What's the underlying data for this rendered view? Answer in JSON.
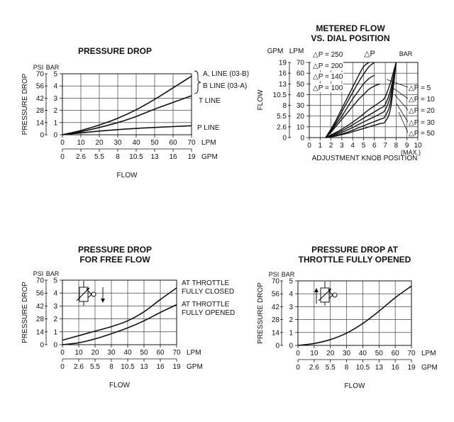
{
  "chart_data": [
    {
      "type": "line",
      "title": [
        "PRESSURE DROP"
      ],
      "xlabel": "FLOW",
      "ylabel": "PRESSURE DROP",
      "y_units": [
        "PSI",
        "BAR"
      ],
      "x_units": [
        "LPM",
        "GPM"
      ],
      "y_ticks_psi": [
        "0",
        "14",
        "28",
        "42",
        "56",
        "70"
      ],
      "y_ticks_bar": [
        "0",
        "1",
        "2",
        "3",
        "4",
        "5"
      ],
      "x_ticks_lpm": [
        "0",
        "10",
        "20",
        "30",
        "40",
        "50",
        "60",
        "70"
      ],
      "x_ticks_gpm": [
        "0",
        "2.6",
        "5.5",
        "8",
        "10.5",
        "13",
        "16",
        "19"
      ],
      "xlim": [
        0,
        70
      ],
      "ylim": [
        0,
        5
      ],
      "grid": true,
      "series": [
        {
          "name": "A, LINE (03-B)",
          "x": [
            0,
            10,
            20,
            30,
            40,
            50,
            60,
            70
          ],
          "y": [
            0,
            0.35,
            0.8,
            1.35,
            2.05,
            2.9,
            3.85,
            4.8
          ]
        },
        {
          "name": "B LINE (03-A)",
          "x": [],
          "y": []
        },
        {
          "name": "T LINE",
          "x": [
            0,
            10,
            20,
            30,
            40,
            50,
            60,
            70
          ],
          "y": [
            0,
            0.25,
            0.6,
            1.0,
            1.5,
            2.1,
            2.65,
            3.2
          ]
        },
        {
          "name": "P LINE",
          "x": [
            0,
            10,
            20,
            30,
            40,
            50,
            60,
            70
          ],
          "y": [
            0,
            0.15,
            0.3,
            0.42,
            0.52,
            0.6,
            0.67,
            0.74
          ]
        }
      ]
    },
    {
      "type": "line",
      "title": [
        "METERED FLOW",
        "VS. DIAL POSITION"
      ],
      "xlabel": "ADJUSTMENT KNOB POSITION",
      "ylabel": "FLOW",
      "y_units": [
        "GPM",
        "LPM"
      ],
      "y_ticks_gpm": [
        "0",
        "2.6",
        "5.5",
        "8",
        "10.5",
        "13",
        "16",
        "19"
      ],
      "y_ticks_lpm": [
        "0",
        "10",
        "20",
        "30",
        "40",
        "50",
        "60",
        "70"
      ],
      "x_ticks": [
        "0",
        "1",
        "2",
        "3",
        "4",
        "5",
        "6",
        "7",
        "8",
        "9",
        "10"
      ],
      "x_note": "(MAX.)",
      "xlim": [
        0,
        10
      ],
      "ylim": [
        0,
        70
      ],
      "grid": true,
      "dp_header": "△P",
      "bar_label": "BAR",
      "series": [
        {
          "name": "△P = 250",
          "x": [
            1.5,
            2,
            2.5,
            3,
            3.5,
            4,
            4.5,
            5,
            5.5
          ],
          "y": [
            0,
            8,
            17,
            27,
            37,
            47,
            57,
            66,
            70
          ]
        },
        {
          "name": "△P = 200",
          "x": [
            1.5,
            2,
            2.5,
            3,
            3.5,
            4,
            4.5,
            5,
            5.5,
            6
          ],
          "y": [
            0,
            7,
            15,
            24,
            33,
            42,
            51,
            59,
            66,
            70
          ]
        },
        {
          "name": "△P = 140",
          "x": [
            1.5,
            2,
            2.5,
            3,
            3.5,
            4,
            4.5,
            5,
            5.5,
            6
          ],
          "y": [
            0,
            6,
            13,
            20,
            28,
            36,
            43,
            50,
            55,
            58
          ]
        },
        {
          "name": "△P = 100",
          "x": [
            1.5,
            2,
            2.5,
            3,
            3.5,
            4,
            4.5,
            5,
            5.5,
            6,
            6.5
          ],
          "y": [
            0,
            5,
            11,
            17,
            23,
            29,
            35,
            40,
            45,
            48,
            50
          ]
        },
        {
          "name": "△P = 5",
          "x": [
            1.5,
            2.5,
            3.5,
            4.5,
            5.5,
            6.5,
            7,
            7.5,
            8
          ],
          "y": [
            0,
            5,
            11,
            18,
            26,
            33,
            38,
            52,
            70
          ]
        },
        {
          "name": "△P = 10",
          "x": [
            1.5,
            2.5,
            3.5,
            4.5,
            5.5,
            6.5,
            7,
            7.5,
            8
          ],
          "y": [
            0,
            4,
            9,
            15,
            21,
            27,
            31,
            45,
            70
          ]
        },
        {
          "name": "△P = 20",
          "x": [
            1.5,
            2.5,
            3.5,
            4.5,
            5.5,
            6.5,
            7,
            7.5,
            8
          ],
          "y": [
            0,
            3,
            7,
            12,
            17,
            22,
            26,
            40,
            70
          ]
        },
        {
          "name": "△P = 30",
          "x": [
            1.5,
            2.5,
            3.5,
            4.5,
            5.5,
            6.5,
            7,
            7.5,
            8
          ],
          "y": [
            0,
            2,
            5,
            9,
            13,
            17,
            20,
            34,
            70
          ]
        },
        {
          "name": "△P = 50",
          "x": [
            1.5,
            2.5,
            3.5,
            4.5,
            5.5,
            6.5,
            7,
            7.5,
            8
          ],
          "y": [
            0,
            1.5,
            4,
            7,
            10,
            13,
            15,
            28,
            70
          ]
        }
      ]
    },
    {
      "type": "line",
      "title": [
        "PRESSURE DROP",
        "FOR FREE FLOW"
      ],
      "xlabel": "FLOW",
      "ylabel": "PRESSURE DROP",
      "y_units": [
        "PSI",
        "BAR"
      ],
      "x_units": [
        "LPM",
        "GPM"
      ],
      "y_ticks_psi": [
        "0",
        "14",
        "28",
        "42",
        "56",
        "70"
      ],
      "y_ticks_bar": [
        "0",
        "1",
        "2",
        "3",
        "4",
        "5"
      ],
      "x_ticks_lpm": [
        "0",
        "10",
        "20",
        "30",
        "40",
        "50",
        "60",
        "70"
      ],
      "x_ticks_gpm": [
        "0",
        "2.6",
        "5.5",
        "8",
        "10.5",
        "13",
        "16",
        "19"
      ],
      "xlim": [
        0,
        70
      ],
      "ylim": [
        0,
        5
      ],
      "grid": true,
      "series": [
        {
          "name": "AT THROTTLE FULLY CLOSED",
          "x": [
            0,
            10,
            20,
            30,
            40,
            50,
            60,
            70
          ],
          "y": [
            0.35,
            0.7,
            1.05,
            1.4,
            1.85,
            2.55,
            3.5,
            4.4
          ]
        },
        {
          "name": "AT THROTTLE FULLY OPENED",
          "x": [
            0,
            10,
            20,
            30,
            40,
            50,
            60,
            70
          ],
          "y": [
            0,
            0.15,
            0.45,
            0.85,
            1.3,
            1.85,
            2.5,
            3.1
          ]
        }
      ]
    },
    {
      "type": "line",
      "title": [
        "PRESSURE DROP AT",
        "THROTTLE FULLY OPENED"
      ],
      "xlabel": "FLOW",
      "ylabel": "PRESSURE DROP",
      "y_units": [
        "PSI",
        "BAR"
      ],
      "x_units": [
        "LPM",
        "GPM"
      ],
      "y_ticks_psi": [
        "0",
        "14",
        "28",
        "42",
        "56",
        "70"
      ],
      "y_ticks_bar": [
        "0",
        "1",
        "2",
        "3",
        "4",
        "5"
      ],
      "x_ticks_lpm": [
        "0",
        "10",
        "20",
        "30",
        "40",
        "50",
        "60",
        "70"
      ],
      "x_ticks_gpm": [
        "0",
        "2.6",
        "5.5",
        "8",
        "10.5",
        "13",
        "16",
        "19"
      ],
      "xlim": [
        0,
        70
      ],
      "ylim": [
        0,
        5
      ],
      "grid": true,
      "series": [
        {
          "name": "",
          "x": [
            0,
            10,
            20,
            30,
            40,
            50,
            60,
            70
          ],
          "y": [
            0,
            0.15,
            0.45,
            0.95,
            1.7,
            2.65,
            3.7,
            4.6
          ]
        }
      ]
    }
  ]
}
